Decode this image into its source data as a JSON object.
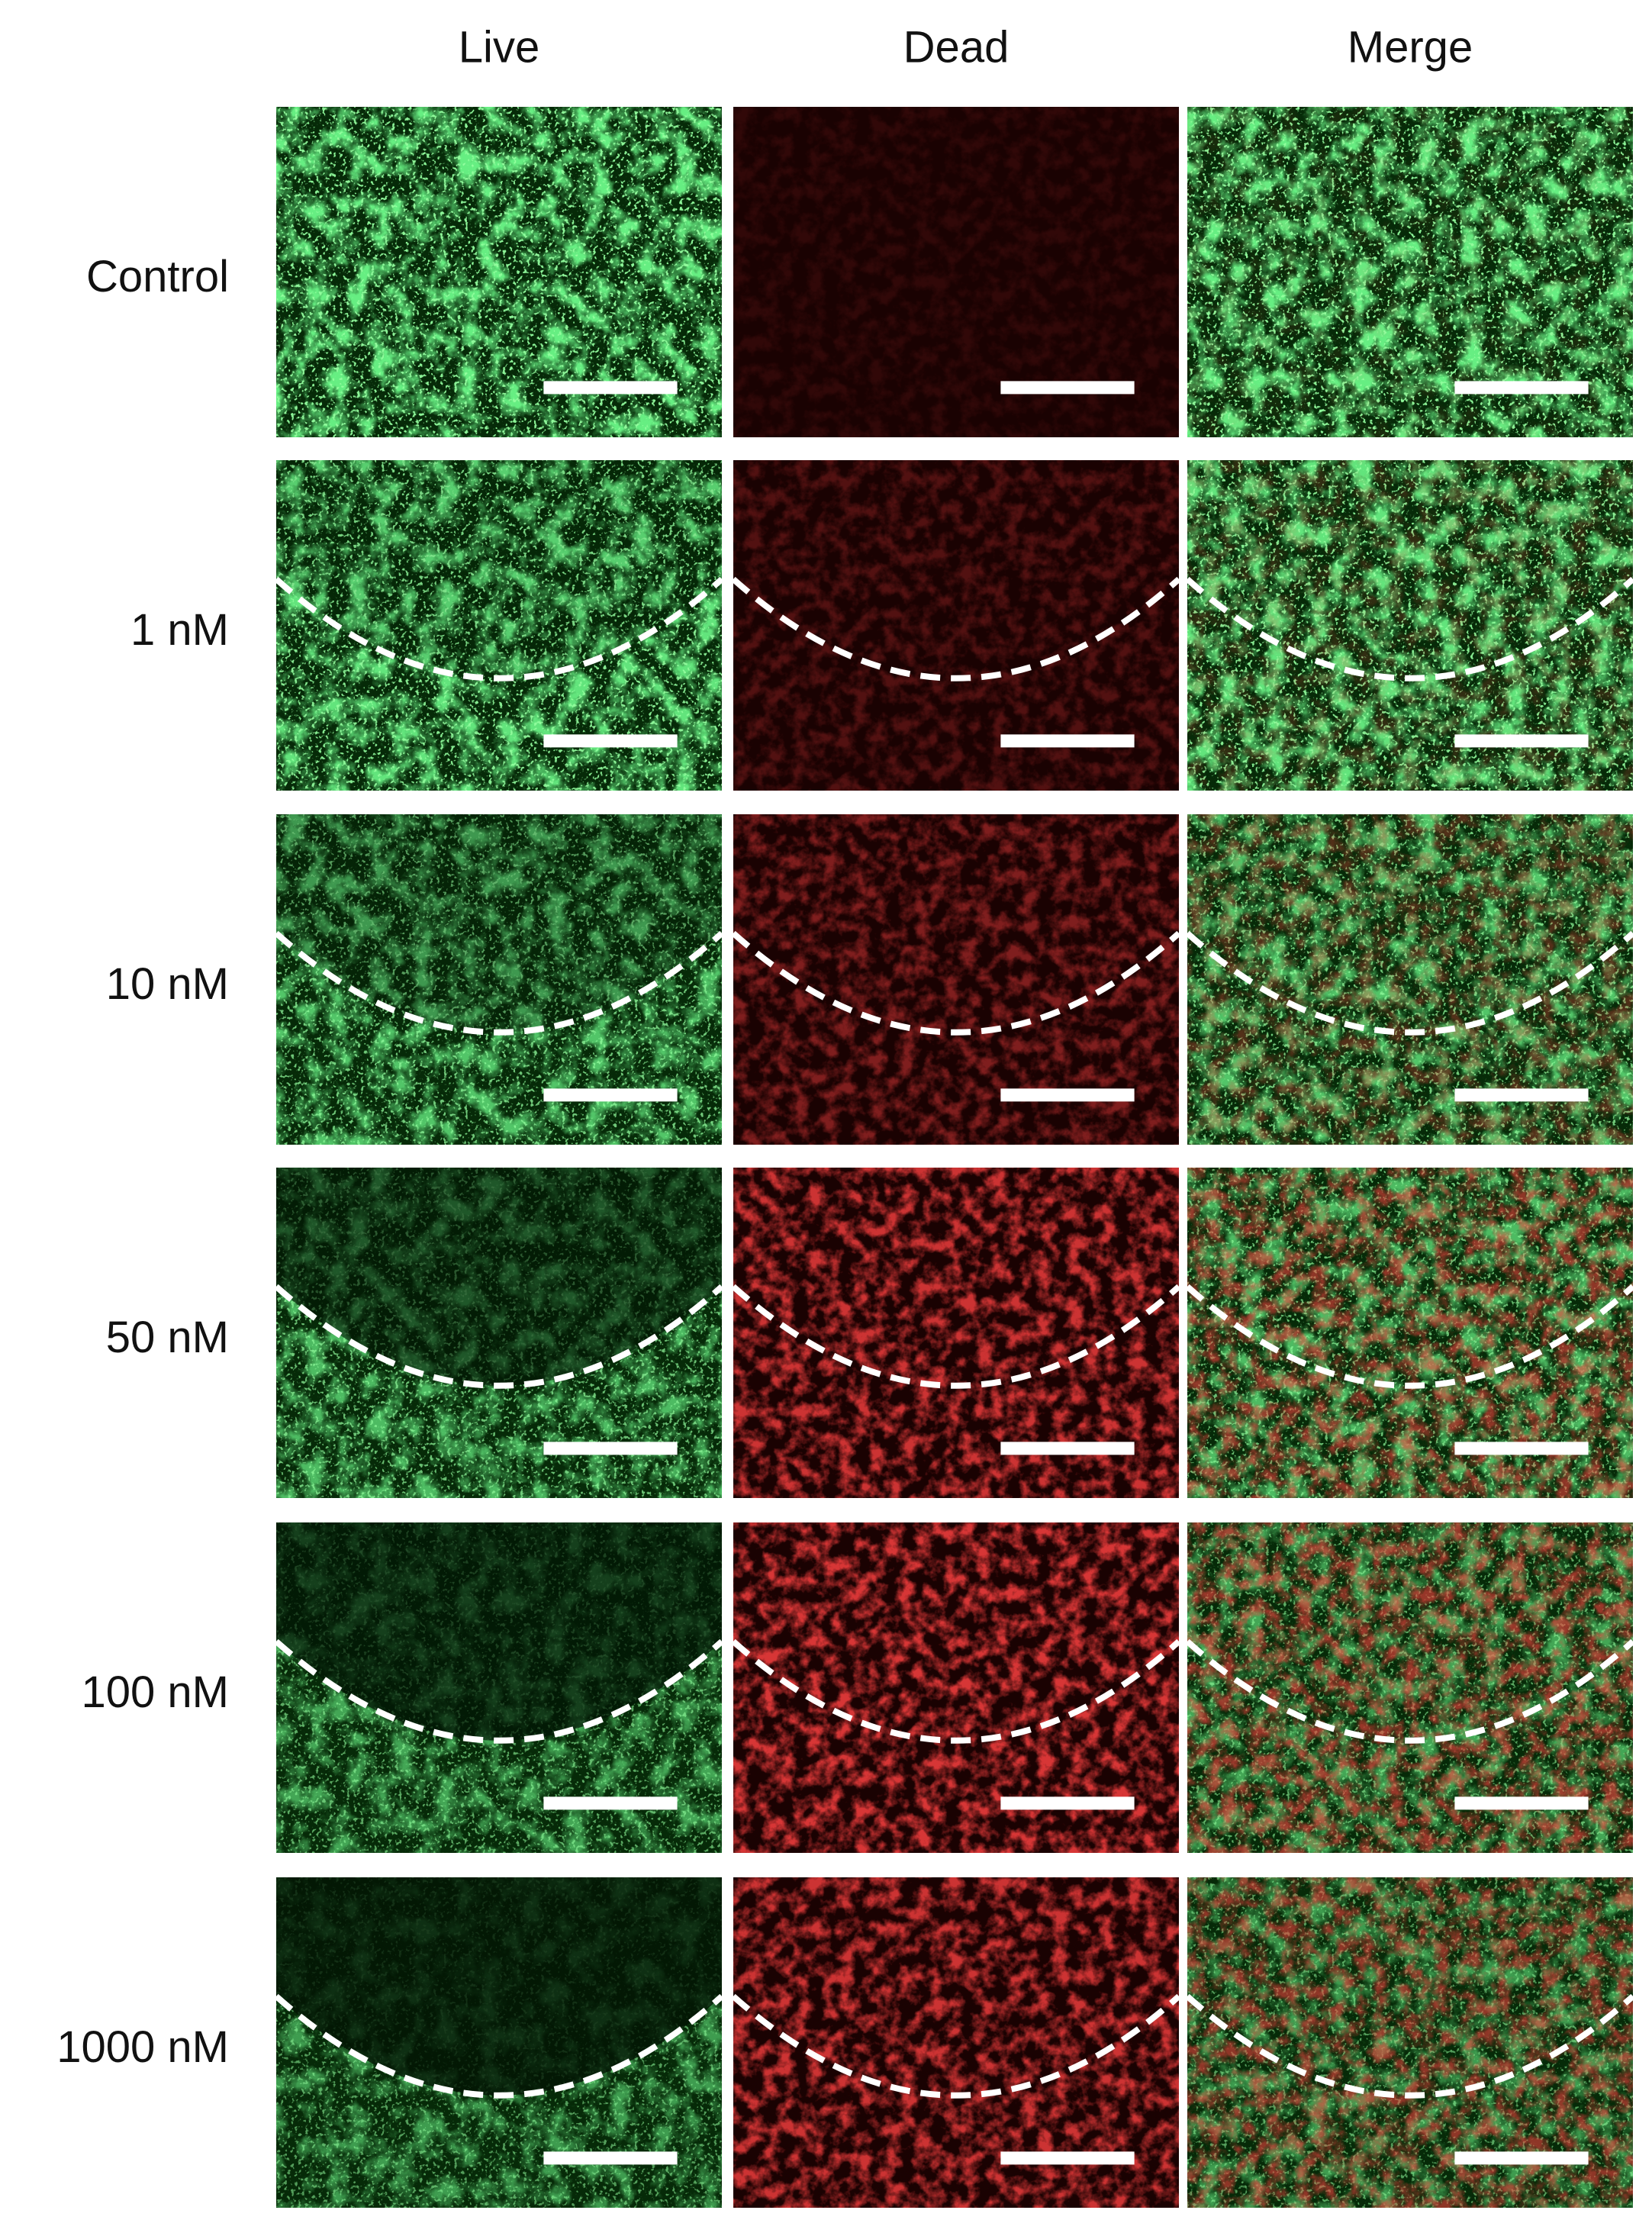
{
  "columns": [
    "Live",
    "Dead",
    "Merge"
  ],
  "rows": [
    "Control",
    "1 nM",
    "10 nM",
    "50 nM",
    "100 nM",
    "1000 nM"
  ]
}
